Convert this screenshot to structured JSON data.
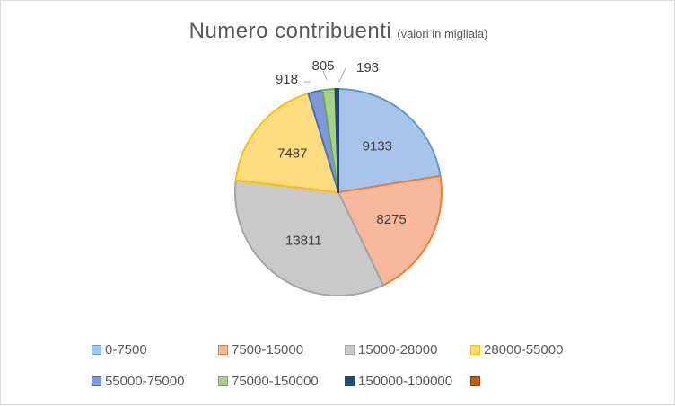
{
  "title": "Numero contribuenti",
  "subtitle": "(valori in migliaia)",
  "chart_data": {
    "type": "pie",
    "title": "Numero contribuenti",
    "subtitle": "(valori in migliaia)",
    "categories": [
      "0-7500",
      "7500-15000",
      "15000-28000",
      "28000-55000",
      "55000-75000",
      "75000-150000",
      "150000-100000",
      ""
    ],
    "values": [
      9133,
      8275,
      13811,
      7487,
      918,
      805,
      193,
      0
    ],
    "labels": [
      "9133",
      "8275",
      "13811",
      "7487",
      "918",
      "805",
      "193",
      ""
    ],
    "colors": [
      "#a9c4ea",
      "#f7b89c",
      "#c9c9c9",
      "#ffdc80",
      "#7f97d6",
      "#a9d18e",
      "#1f4e79",
      "#c55a11"
    ],
    "borders": [
      "#5b9bd5",
      "#ed7d31",
      "#a5a5a5",
      "#ffc000",
      "#4472c4",
      "#70ad47",
      "#264478",
      "#843c0c"
    ],
    "legend_position": "bottom",
    "start_angle": "12 o'clock",
    "direction": "clockwise"
  }
}
